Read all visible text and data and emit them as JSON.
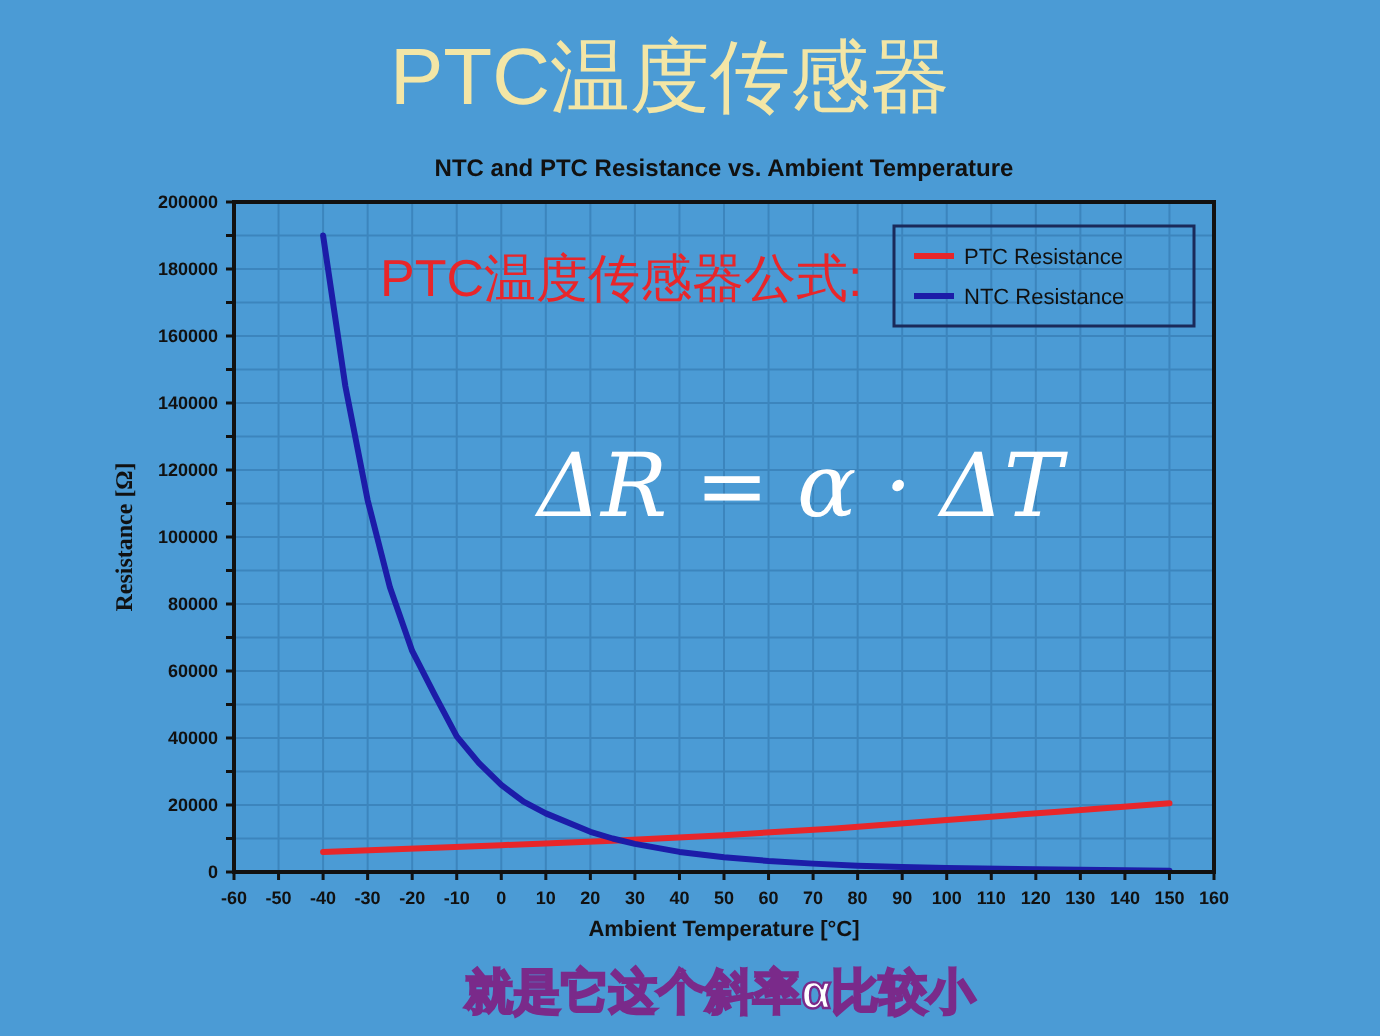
{
  "chart_data": {
    "type": "line",
    "title": "PTC温度传感器",
    "subtitle": "NTC and PTC Resistance vs. Ambient Temperature",
    "xlabel": "Ambient Temperature [°C]",
    "ylabel": "Resistance [Ω]",
    "annotations": [
      "PTC温度传感器公式:",
      "ΔR = α · ΔT",
      "就是它这个斜率α比较小"
    ],
    "series": [
      {
        "name": "PTC Resistance",
        "color": "#e8262a",
        "x": [
          -40,
          0,
          25,
          50,
          75,
          100,
          125,
          150
        ],
        "values": [
          6000,
          8000,
          9300,
          11000,
          13000,
          15500,
          18000,
          20500
        ]
      },
      {
        "name": "NTC Resistance",
        "color": "#1c1ca8",
        "x": [
          -40,
          -35,
          -30,
          -25,
          -20,
          -15,
          -10,
          -5,
          0,
          5,
          10,
          20,
          25,
          30,
          40,
          50,
          60,
          70,
          80,
          90,
          100,
          120,
          150
        ],
        "values": [
          190000,
          145000,
          111000,
          85000,
          66000,
          53000,
          40500,
          32500,
          26000,
          21000,
          17500,
          12000,
          10000,
          8400,
          6000,
          4400,
          3300,
          2500,
          1900,
          1500,
          1200,
          800,
          400
        ]
      }
    ],
    "xlim": [
      -60,
      160
    ],
    "xticks": [
      -60,
      -50,
      -40,
      -30,
      -20,
      -10,
      0,
      10,
      20,
      30,
      40,
      50,
      60,
      70,
      80,
      90,
      100,
      110,
      120,
      130,
      140,
      150,
      160
    ],
    "ylim": [
      0,
      200000
    ],
    "yticks": [
      0,
      {
        "value": 10000,
        "label": null
      },
      20000,
      {
        "value": 30000,
        "label": null
      },
      40000,
      {
        "value": 50000,
        "label": null
      },
      60000,
      {
        "value": 70000,
        "label": null
      },
      80000,
      {
        "value": 90000,
        "label": null
      },
      100000,
      {
        "value": 110000,
        "label": null
      },
      120000,
      {
        "value": 130000,
        "label": null
      },
      140000,
      {
        "value": 150000,
        "label": null
      },
      160000,
      {
        "value": 170000,
        "label": null
      },
      180000,
      {
        "value": 190000,
        "label": null
      },
      200000
    ],
    "grid": true,
    "legend": "top right"
  }
}
